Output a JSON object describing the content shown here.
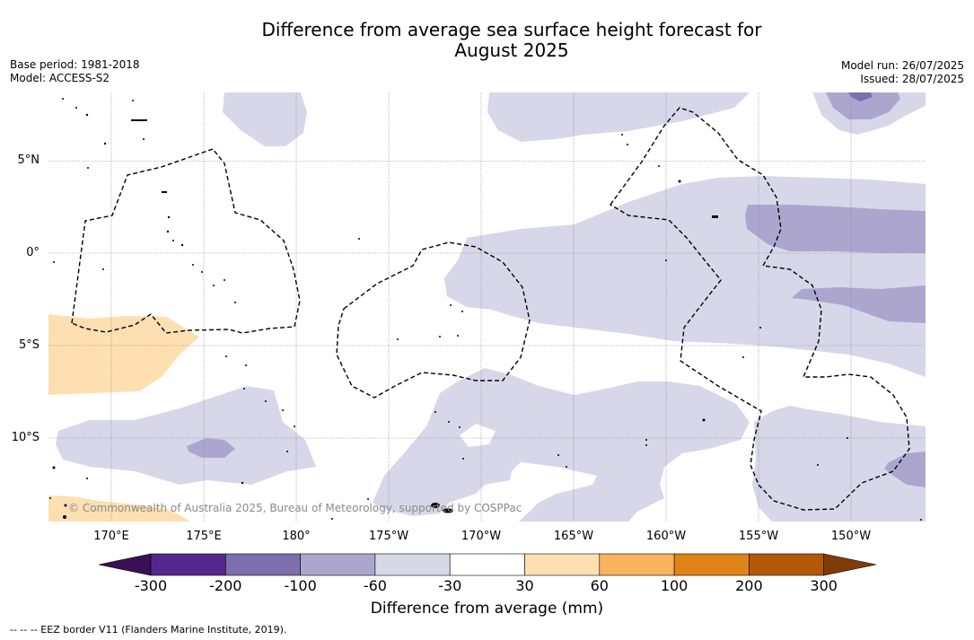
{
  "title_line1": "Difference from average sea surface height forecast for",
  "title_line2": "August 2025",
  "meta": {
    "base_period": "Base period: 1981-2018",
    "model": "Model: ACCESS-S2",
    "model_run": "Model run: 26/07/2025",
    "issued": "Issued: 28/07/2025"
  },
  "lat_labels": [
    "5°N",
    "0°",
    "5°S",
    "10°S"
  ],
  "lon_labels": [
    "170°E",
    "175°E",
    "180°",
    "175°W",
    "170°W",
    "165°W",
    "160°W",
    "155°W",
    "150°W"
  ],
  "copyright": "© Commonwealth of Australia 2025, Bureau of Meteorology, supported by COSPPac",
  "colorbar": {
    "ticks": [
      "-300",
      "-200",
      "-100",
      "-60",
      "-30",
      "30",
      "60",
      "100",
      "200",
      "300"
    ],
    "colors": [
      "#3b0f55",
      "#54278f",
      "#7d6fad",
      "#aca6cf",
      "#d7d7e9",
      "#ffffff",
      "#fddfb2",
      "#f9b35c",
      "#e08418",
      "#b35806",
      "#7f3b08"
    ],
    "label": "Difference from average (mm)"
  },
  "footnote": "--  --  -- EEZ border V11 (Flanders Marine Institute, 2019)."
}
